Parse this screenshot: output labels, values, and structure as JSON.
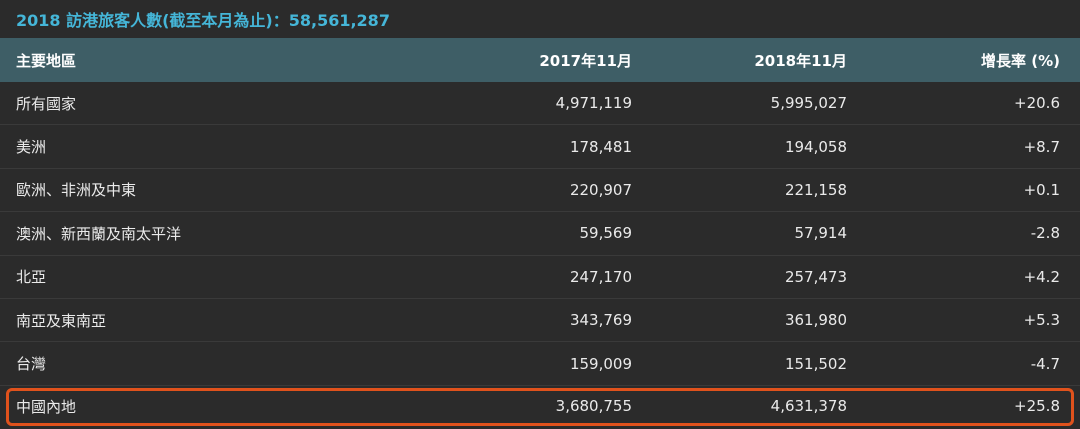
{
  "title": "2018 訪港旅客人數(截至本月為止)：58,561,287",
  "columns": [
    "主要地區",
    "2017年11月",
    "2018年11月",
    "增長率 (%)"
  ],
  "rows": [
    {
      "region": "所有國家",
      "v2017": "4,971,119",
      "v2018": "5,995,027",
      "growth": "+20.6"
    },
    {
      "region": "美洲",
      "v2017": "178,481",
      "v2018": "194,058",
      "growth": "+8.7"
    },
    {
      "region": "歐洲、非洲及中東",
      "v2017": "220,907",
      "v2018": "221,158",
      "growth": "+0.1"
    },
    {
      "region": "澳洲、新西蘭及南太平洋",
      "v2017": "59,569",
      "v2018": "57,914",
      "growth": "-2.8"
    },
    {
      "region": "北亞",
      "v2017": "247,170",
      "v2018": "257,473",
      "growth": "+4.2"
    },
    {
      "region": "南亞及東南亞",
      "v2017": "343,769",
      "v2018": "361,980",
      "growth": "+5.3"
    },
    {
      "region": "台灣",
      "v2017": "159,009",
      "v2018": "151,502",
      "growth": "-4.7"
    },
    {
      "region": "中國內地",
      "v2017": "3,680,755",
      "v2018": "4,631,378",
      "growth": "+25.8"
    }
  ],
  "colors": {
    "accent": "#45b6d8",
    "header_bg": "#3e5e66",
    "highlight": "#e0521c",
    "bg": "#2b2b2b"
  }
}
